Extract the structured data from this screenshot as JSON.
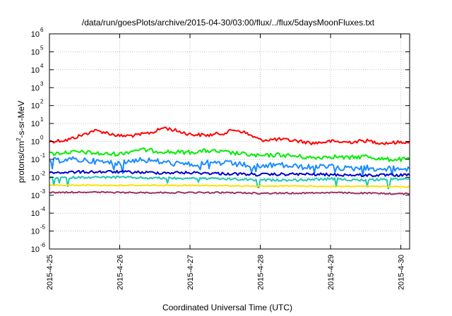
{
  "chart_data": {
    "type": "line",
    "title": "/data/run/goesPlots/archive/2015-04-30/03:00/flux/../flux/5daysMoonFluxes.txt",
    "xlabel": "Coordinated Universal Time (UTC)",
    "ylabel": {
      "prefix": "protons/cm",
      "superscript": "2",
      "suffix": "-s-sr-MeV"
    },
    "y_scale": "log",
    "ylim": [
      1e-06,
      1000000.0
    ],
    "y_ticks": [
      {
        "value": 1e-06,
        "base": "10",
        "exp": "-6"
      },
      {
        "value": 1e-05,
        "base": "10",
        "exp": "-5"
      },
      {
        "value": 0.0001,
        "base": "10",
        "exp": "-4"
      },
      {
        "value": 0.001,
        "base": "10",
        "exp": "-3"
      },
      {
        "value": 0.01,
        "base": "10",
        "exp": "-2"
      },
      {
        "value": 0.1,
        "base": "10",
        "exp": "-1"
      },
      {
        "value": 1,
        "base": "10",
        "exp": "0"
      },
      {
        "value": 10,
        "base": "10",
        "exp": "1"
      },
      {
        "value": 100,
        "base": "10",
        "exp": "2"
      },
      {
        "value": 1000,
        "base": "10",
        "exp": "3"
      },
      {
        "value": 10000,
        "base": "10",
        "exp": "4"
      },
      {
        "value": 100000,
        "base": "10",
        "exp": "5"
      },
      {
        "value": 1000000,
        "base": "10",
        "exp": "6"
      }
    ],
    "xlim": [
      "2015-04-25 00:00",
      "2015-04-30 03:00"
    ],
    "x_ticks": [
      {
        "date": "2015-04-25 00:00",
        "label": "2015-4-25"
      },
      {
        "date": "2015-04-26 00:00",
        "label": "2015-4-26"
      },
      {
        "date": "2015-04-27 00:00",
        "label": "2015-4-27"
      },
      {
        "date": "2015-04-28 00:00",
        "label": "2015-4-28"
      },
      {
        "date": "2015-04-29 00:00",
        "label": "2015-4-29"
      },
      {
        "date": "2015-04-30 00:00",
        "label": "2015-4-30"
      }
    ],
    "grid": "dotted, x and y",
    "series": [
      {
        "color": "#ff0000",
        "x": [
          "2015-04-25 00:00",
          "2015-04-25 06:00",
          "2015-04-25 12:00",
          "2015-04-25 15:00",
          "2015-04-25 18:00",
          "2015-04-26 00:00",
          "2015-04-26 06:00",
          "2015-04-26 12:00",
          "2015-04-26 15:00",
          "2015-04-26 18:00",
          "2015-04-27 00:00",
          "2015-04-27 06:00",
          "2015-04-27 12:00",
          "2015-04-27 15:00",
          "2015-04-27 18:00",
          "2015-04-28 00:00",
          "2015-04-28 06:00",
          "2015-04-28 12:00",
          "2015-04-28 18:00",
          "2015-04-29 00:00",
          "2015-04-29 06:00",
          "2015-04-29 12:00",
          "2015-04-29 18:00",
          "2015-04-30 00:00",
          "2015-04-30 03:00"
        ],
        "y": [
          1.0,
          1.2,
          2.5,
          4.0,
          3.5,
          2.0,
          2.2,
          3.5,
          6.0,
          4.5,
          2.5,
          2.2,
          3.0,
          4.5,
          3.5,
          1.2,
          1.3,
          1.1,
          0.8,
          1.0,
          0.9,
          1.1,
          0.8,
          0.9,
          1.0
        ]
      },
      {
        "color": "#00ee00",
        "x": [
          "2015-04-25 00:00",
          "2015-04-25 06:00",
          "2015-04-25 12:00",
          "2015-04-25 18:00",
          "2015-04-26 00:00",
          "2015-04-26 06:00",
          "2015-04-26 12:00",
          "2015-04-26 18:00",
          "2015-04-27 00:00",
          "2015-04-27 06:00",
          "2015-04-27 12:00",
          "2015-04-27 18:00",
          "2015-04-28 00:00",
          "2015-04-28 06:00",
          "2015-04-28 12:00",
          "2015-04-28 18:00",
          "2015-04-29 00:00",
          "2015-04-29 06:00",
          "2015-04-29 12:00",
          "2015-04-29 18:00",
          "2015-04-30 00:00",
          "2015-04-30 03:00"
        ],
        "y": [
          0.2,
          0.25,
          0.25,
          0.2,
          0.2,
          0.35,
          0.3,
          0.25,
          0.25,
          0.3,
          0.25,
          0.2,
          0.15,
          0.18,
          0.15,
          0.12,
          0.15,
          0.12,
          0.15,
          0.1,
          0.1,
          0.1
        ]
      },
      {
        "color": "#1a8cff",
        "x": [
          "2015-04-25 00:00",
          "2015-04-25 06:00",
          "2015-04-25 12:00",
          "2015-04-25 18:00",
          "2015-04-26 00:00",
          "2015-04-26 06:00",
          "2015-04-26 12:00",
          "2015-04-26 18:00",
          "2015-04-27 00:00",
          "2015-04-27 06:00",
          "2015-04-27 12:00",
          "2015-04-27 18:00",
          "2015-04-28 00:00",
          "2015-04-28 06:00",
          "2015-04-28 12:00",
          "2015-04-28 18:00",
          "2015-04-29 00:00",
          "2015-04-29 06:00",
          "2015-04-29 12:00",
          "2015-04-29 18:00",
          "2015-04-30 00:00",
          "2015-04-30 03:00"
        ],
        "y": [
          0.08,
          0.1,
          0.09,
          0.07,
          0.06,
          0.1,
          0.08,
          0.06,
          0.05,
          0.07,
          0.06,
          0.05,
          0.04,
          0.05,
          0.04,
          0.035,
          0.04,
          0.03,
          0.035,
          0.03,
          0.03,
          0.03
        ]
      },
      {
        "color": "#0000cc",
        "x": [
          "2015-04-25 00:00",
          "2015-04-25 12:00",
          "2015-04-26 00:00",
          "2015-04-26 12:00",
          "2015-04-27 00:00",
          "2015-04-27 12:00",
          "2015-04-28 00:00",
          "2015-04-28 12:00",
          "2015-04-29 00:00",
          "2015-04-29 12:00",
          "2015-04-30 00:00",
          "2015-04-30 03:00"
        ],
        "y": [
          0.018,
          0.02,
          0.02,
          0.018,
          0.018,
          0.016,
          0.014,
          0.015,
          0.014,
          0.013,
          0.013,
          0.013
        ]
      },
      {
        "color": "#20c8b4",
        "x": [
          "2015-04-25 00:00",
          "2015-04-25 12:00",
          "2015-04-26 00:00",
          "2015-04-26 12:00",
          "2015-04-27 00:00",
          "2015-04-27 12:00",
          "2015-04-28 00:00",
          "2015-04-28 12:00",
          "2015-04-29 00:00",
          "2015-04-29 12:00",
          "2015-04-30 00:00",
          "2015-04-30 03:00"
        ],
        "y": [
          0.009,
          0.01,
          0.01,
          0.009,
          0.009,
          0.008,
          0.007,
          0.007,
          0.008,
          0.007,
          0.008,
          0.008
        ]
      },
      {
        "color": "#ffe000",
        "x": [
          "2015-04-25 00:00",
          "2015-04-25 12:00",
          "2015-04-26 00:00",
          "2015-04-26 12:00",
          "2015-04-27 00:00",
          "2015-04-27 12:00",
          "2015-04-28 00:00",
          "2015-04-28 12:00",
          "2015-04-29 00:00",
          "2015-04-29 12:00",
          "2015-04-30 00:00",
          "2015-04-30 03:00"
        ],
        "y": [
          0.0035,
          0.0037,
          0.0035,
          0.0036,
          0.0035,
          0.0034,
          0.0032,
          0.0033,
          0.0031,
          0.0031,
          0.003,
          0.003
        ]
      },
      {
        "color": "#993366",
        "x": [
          "2015-04-25 00:00",
          "2015-04-25 12:00",
          "2015-04-26 00:00",
          "2015-04-26 12:00",
          "2015-04-27 00:00",
          "2015-04-27 12:00",
          "2015-04-28 00:00",
          "2015-04-28 12:00",
          "2015-04-29 00:00",
          "2015-04-29 12:00",
          "2015-04-30 00:00",
          "2015-04-30 03:00"
        ],
        "y": [
          0.0014,
          0.0015,
          0.0014,
          0.0014,
          0.0014,
          0.0014,
          0.0013,
          0.0013,
          0.0014,
          0.0013,
          0.0012,
          0.0012
        ]
      }
    ]
  }
}
